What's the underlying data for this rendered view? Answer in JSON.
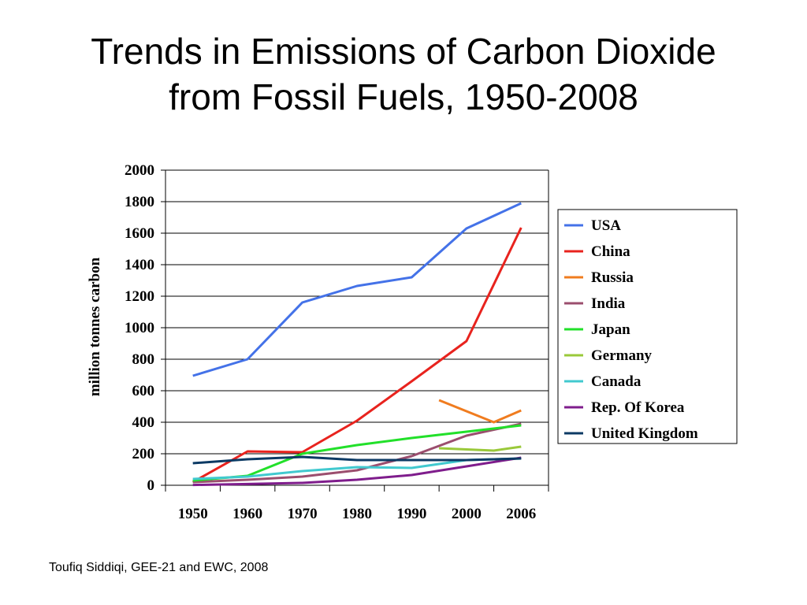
{
  "slide": {
    "title_line1": "Trends in Emissions of Carbon Dioxide",
    "title_line2": "from Fossil Fuels, 1950-2008",
    "credit": "Toufiq Siddiqi, GEE-21 and EWC, 2008"
  },
  "chart_data": {
    "type": "line",
    "title": "",
    "xlabel": "",
    "ylabel": "million tonnes carbon",
    "categories": [
      "1950",
      "1960",
      "1970",
      "1980",
      "1990",
      "2000",
      "2006"
    ],
    "ylim": [
      0,
      2000
    ],
    "yticks": [
      0,
      200,
      400,
      600,
      800,
      1000,
      1200,
      1400,
      1600,
      1800,
      2000
    ],
    "grid": "horizontal",
    "legend_position": "right",
    "series": [
      {
        "name": "USA",
        "color": "#4472e8",
        "points": [
          [
            0,
            695
          ],
          [
            1,
            800
          ],
          [
            2,
            1160
          ],
          [
            3,
            1265
          ],
          [
            4,
            1320
          ],
          [
            5,
            1630
          ],
          [
            6,
            1790
          ]
        ]
      },
      {
        "name": "China",
        "color": "#e8231e",
        "points": [
          [
            0,
            20
          ],
          [
            1,
            215
          ],
          [
            2,
            210
          ],
          [
            3,
            410
          ],
          [
            4,
            660
          ],
          [
            5,
            915
          ],
          [
            6,
            1635
          ]
        ]
      },
      {
        "name": "Russia",
        "color": "#f07c1f",
        "points": [
          [
            4.5,
            540
          ],
          [
            5.5,
            400
          ],
          [
            6,
            475
          ]
        ]
      },
      {
        "name": "India",
        "color": "#9b4e6e",
        "points": [
          [
            0,
            20
          ],
          [
            1,
            35
          ],
          [
            2,
            55
          ],
          [
            3,
            95
          ],
          [
            4,
            185
          ],
          [
            5,
            315
          ],
          [
            6,
            390
          ]
        ]
      },
      {
        "name": "Japan",
        "color": "#22e02a",
        "points": [
          [
            0,
            30
          ],
          [
            1,
            60
          ],
          [
            2,
            200
          ],
          [
            3,
            255
          ],
          [
            4,
            300
          ],
          [
            5,
            340
          ],
          [
            6,
            380
          ]
        ]
      },
      {
        "name": "Germany",
        "color": "#9ac93a",
        "points": [
          [
            4.5,
            235
          ],
          [
            5.5,
            220
          ],
          [
            6,
            245
          ]
        ]
      },
      {
        "name": "Canada",
        "color": "#41c9cf",
        "points": [
          [
            0,
            40
          ],
          [
            1,
            55
          ],
          [
            2,
            90
          ],
          [
            3,
            115
          ],
          [
            4,
            110
          ],
          [
            5,
            160
          ],
          [
            6,
            170
          ]
        ]
      },
      {
        "name": "Rep. Of Korea",
        "color": "#7f1d8c",
        "points": [
          [
            0,
            2
          ],
          [
            1,
            8
          ],
          [
            2,
            15
          ],
          [
            3,
            35
          ],
          [
            4,
            65
          ],
          [
            5,
            120
          ],
          [
            6,
            175
          ]
        ]
      },
      {
        "name": "United Kingdom",
        "color": "#0c3a64",
        "points": [
          [
            0,
            140
          ],
          [
            1,
            165
          ],
          [
            2,
            180
          ],
          [
            3,
            160
          ],
          [
            4,
            160
          ],
          [
            5,
            160
          ],
          [
            6,
            170
          ]
        ]
      }
    ]
  }
}
